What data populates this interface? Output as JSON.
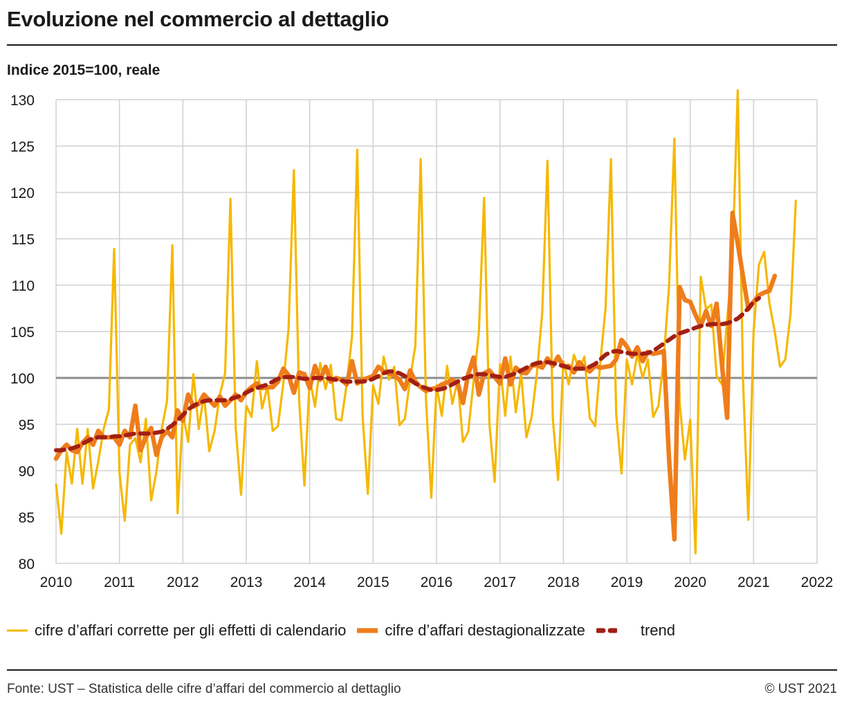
{
  "title": "Evoluzione nel commercio al dettaglio",
  "subtitle": "Indice 2015=100, reale",
  "source": "Fonte: UST – Statistica delle cifre d’affari del commercio al dettaglio",
  "copyright": "© UST 2021",
  "colors": {
    "calendar": "#f5b800",
    "seasonal": "#ee7d1c",
    "trend": "#a21f14",
    "reference": "#8c8c8c",
    "grid": "#d0d0d0"
  },
  "legend": [
    {
      "label": "cifre d’affari corrette per gli effetti di calendario",
      "series": 0
    },
    {
      "label": "cifre d’affari destagionalizzate",
      "series": 1
    },
    {
      "label": "trend",
      "series": 2
    }
  ],
  "chart_data": {
    "type": "line",
    "xlim": [
      2010,
      2022
    ],
    "ylim": [
      80,
      130
    ],
    "x_ticks": [
      "2010",
      "2011",
      "2012",
      "2013",
      "2014",
      "2015",
      "2016",
      "2017",
      "2018",
      "2019",
      "2020",
      "2021",
      "2022"
    ],
    "y_ticks": [
      "80",
      "85",
      "90",
      "95",
      "100",
      "105",
      "110",
      "115",
      "120",
      "125",
      "130"
    ],
    "reference_line": 100,
    "grid": true,
    "series": [
      {
        "name": "cifre d’affari corrette per gli effetti di calendario",
        "start": 2010,
        "step": "month",
        "values": [
          88.6,
          83.2,
          92.0,
          88.6,
          94.5,
          88.6,
          94.5,
          88.1,
          91.0,
          94.5,
          96.6,
          113.9,
          89.8,
          84.6,
          92.8,
          93.5,
          90.9,
          95.6,
          86.8,
          89.9,
          94.5,
          97.5,
          114.3,
          85.4,
          96.2,
          93.1,
          100.4,
          94.5,
          98.2,
          92.1,
          94.3,
          98.2,
          100.5,
          119.3,
          94.6,
          87.4,
          97.0,
          95.8,
          101.8,
          96.7,
          99.1,
          94.3,
          94.8,
          99.4,
          105.3,
          122.4,
          97.6,
          88.4,
          100.0,
          96.9,
          101.6,
          98.8,
          101.4,
          95.6,
          95.4,
          99.3,
          104.4,
          124.6,
          95.9,
          87.5,
          99.2,
          97.2,
          102.3,
          99.8,
          101.2,
          94.9,
          95.6,
          99.9,
          103.5,
          123.6,
          97.8,
          87.1,
          99.2,
          95.9,
          101.3,
          97.2,
          99.8,
          93.1,
          94.2,
          99.6,
          104.8,
          119.4,
          95.1,
          88.8,
          101.5,
          95.9,
          102.3,
          96.3,
          100.5,
          93.6,
          95.8,
          100.5,
          107.0,
          123.4,
          95.6,
          89.0,
          101.8,
          99.3,
          102.5,
          100.9,
          102.3,
          95.7,
          94.8,
          101.7,
          107.6,
          123.6,
          96.1,
          89.7,
          102.0,
          99.3,
          102.6,
          100.0,
          102.0,
          95.8,
          97.0,
          102.1,
          109.9,
          125.8,
          97.4,
          91.2,
          95.5,
          81.1,
          110.9,
          107.4,
          107.9,
          100.2,
          99.3,
          106.4,
          112.7,
          131.0,
          99.6,
          84.7,
          105.0,
          112.2,
          113.6,
          108.0,
          105.0,
          101.2,
          102.0,
          107.0,
          119.2
        ]
      },
      {
        "name": "cifre d’affari destagionalizzate",
        "start": 2010,
        "step": "month",
        "values": [
          91.3,
          92.2,
          92.8,
          92.2,
          92.0,
          93.0,
          93.6,
          92.8,
          94.3,
          93.6,
          93.6,
          93.6,
          92.8,
          94.3,
          93.6,
          97.0,
          92.2,
          93.6,
          94.6,
          91.7,
          93.6,
          94.3,
          93.6,
          96.5,
          95.4,
          98.2,
          96.9,
          97.2,
          98.2,
          97.6,
          97.0,
          98.0,
          97.0,
          97.6,
          98.2,
          97.6,
          98.5,
          99.0,
          99.4,
          98.9,
          99.0,
          99.0,
          99.6,
          101.0,
          100.3,
          98.4,
          100.6,
          100.4,
          98.9,
          101.3,
          99.8,
          101.2,
          99.6,
          100.0,
          99.8,
          99.3,
          101.8,
          99.4,
          99.8,
          100.0,
          100.2,
          101.2,
          100.7,
          100.5,
          100.3,
          99.8,
          98.8,
          100.8,
          99.6,
          99.0,
          98.6,
          98.8,
          98.9,
          99.3,
          99.5,
          99.8,
          99.4,
          97.3,
          100.4,
          102.2,
          98.2,
          100.5,
          100.8,
          100.1,
          99.4,
          102.1,
          99.3,
          101.1,
          100.6,
          100.5,
          101.3,
          101.4,
          101.1,
          102.1,
          101.3,
          102.3,
          101.2,
          101.3,
          100.6,
          101.7,
          101.1,
          100.7,
          101.3,
          101.1,
          101.2,
          101.3,
          102.0,
          104.1,
          103.4,
          102.3,
          103.3,
          101.8,
          102.8,
          102.6,
          102.7,
          102.9,
          91.3,
          82.6,
          109.8,
          108.4,
          108.2,
          106.8,
          105.6,
          107.2,
          105.6,
          108.0,
          101.5,
          95.7,
          117.8,
          114.5,
          110.9,
          107.4,
          108.2,
          108.9,
          109.2,
          109.4,
          111.0
        ]
      },
      {
        "name": "trend",
        "start": 2010,
        "step": "month",
        "values": [
          92.2,
          92.2,
          92.3,
          92.4,
          92.6,
          92.9,
          93.2,
          93.5,
          93.6,
          93.6,
          93.6,
          93.7,
          93.7,
          93.8,
          93.9,
          94.0,
          94.0,
          94.0,
          94.0,
          94.1,
          94.2,
          94.5,
          94.9,
          95.4,
          96.0,
          96.6,
          97.0,
          97.3,
          97.5,
          97.6,
          97.6,
          97.6,
          97.6,
          97.7,
          97.9,
          98.1,
          98.4,
          98.7,
          98.9,
          99.1,
          99.3,
          99.6,
          99.9,
          100.1,
          100.1,
          100.1,
          100.0,
          99.9,
          99.9,
          100.0,
          100.0,
          100.0,
          99.9,
          99.8,
          99.7,
          99.6,
          99.6,
          99.6,
          99.6,
          99.7,
          99.9,
          100.2,
          100.5,
          100.7,
          100.7,
          100.5,
          100.2,
          99.8,
          99.4,
          99.1,
          98.9,
          98.7,
          98.7,
          98.8,
          99.0,
          99.3,
          99.6,
          99.9,
          100.1,
          100.3,
          100.4,
          100.4,
          100.3,
          100.2,
          100.1,
          100.1,
          100.3,
          100.5,
          100.8,
          101.1,
          101.4,
          101.6,
          101.7,
          101.7,
          101.6,
          101.4,
          101.3,
          101.1,
          101.0,
          101.0,
          101.0,
          101.2,
          101.5,
          102.0,
          102.5,
          102.8,
          102.9,
          102.8,
          102.7,
          102.6,
          102.6,
          102.6,
          102.7,
          102.9,
          103.3,
          103.7,
          104.1,
          104.5,
          104.8,
          105.0,
          105.2,
          105.4,
          105.6,
          105.7,
          105.8,
          105.8,
          105.8,
          105.9,
          106.1,
          106.4,
          106.9,
          107.5,
          108.2,
          108.6
        ]
      }
    ]
  }
}
